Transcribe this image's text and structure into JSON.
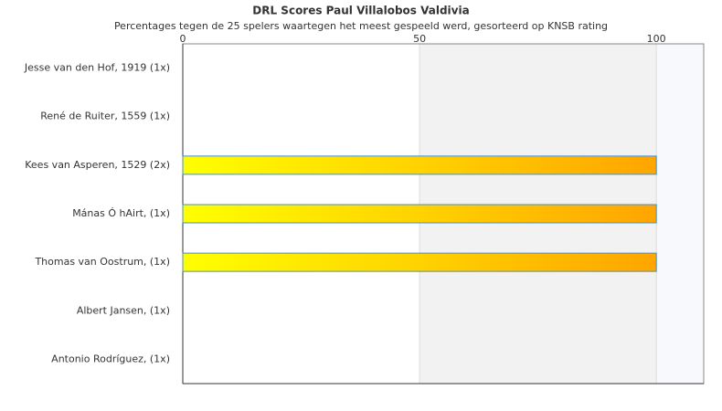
{
  "chart_data": {
    "type": "bar",
    "orientation": "horizontal",
    "title": "DRL Scores Paul Villalobos Valdivia",
    "subtitle": "Percentages tegen de 25 spelers waartegen het meest gespeeld werd, gesorteerd op KNSB rating",
    "categories": [
      "Jesse van den Hof, 1919 (1x)",
      "René de Ruiter, 1559 (1x)",
      "Kees van Asperen, 1529 (2x)",
      "Mánas Ó hAirt,  (1x)",
      "Thomas van Oostrum,  (1x)",
      "Albert Jansen,  (1x)",
      "Antonio Rodríguez,  (1x)"
    ],
    "values": [
      0,
      0,
      100,
      100,
      100,
      0,
      0
    ],
    "colors": [
      "#ffff00",
      "#ffa500"
    ],
    "xlim": [
      0,
      110
    ],
    "xticks": [
      0,
      50,
      100
    ],
    "grid": true
  }
}
